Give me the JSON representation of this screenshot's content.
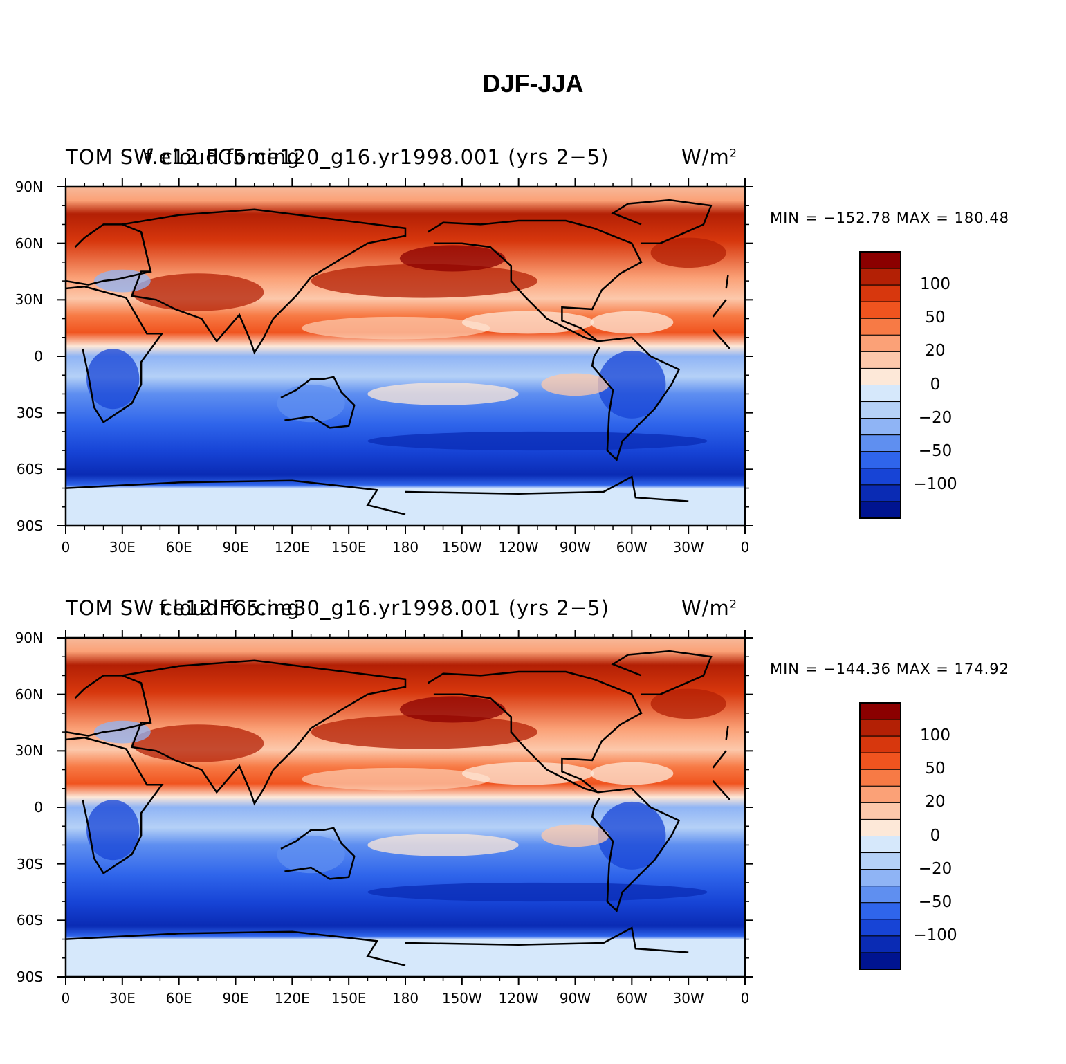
{
  "title": "DJF-JJA",
  "lat_labels": [
    "90N",
    "60N",
    "30N",
    "0",
    "30S",
    "60S",
    "90S"
  ],
  "lon_labels": [
    "0",
    "30E",
    "60E",
    "90E",
    "120E",
    "150E",
    "180",
    "150W",
    "120W",
    "90W",
    "60W",
    "30W",
    "0"
  ],
  "colorbar": {
    "labels": [
      "100",
      "50",
      "20",
      "0",
      "−20",
      "−50",
      "−100"
    ],
    "colors": [
      "#8b0000",
      "#b32005",
      "#d7370d",
      "#f0541f",
      "#f77a45",
      "#fba177",
      "#fcc8ab",
      "#fde8d8",
      "#d6e8fb",
      "#b5d1f7",
      "#8fb4f5",
      "#5f8ff0",
      "#2f65eb",
      "#1744d6",
      "#0a2bb4",
      "#001490"
    ]
  },
  "panels": [
    {
      "variable": "TOM SW cloud forcing",
      "case": "f.e12.FC5.ne120_g16.yr1998.001 (yrs 2−5)",
      "units": "W/m",
      "units_exp": "2",
      "min_max": "MIN = −152.78  MAX = 180.48"
    },
    {
      "variable": "TOM SW cloud forcing",
      "case": "f.e12.FC5.ne30_g16.yr1998.001 (yrs 2−5)",
      "units": "W/m",
      "units_exp": "2",
      "min_max": "MIN = −144.36  MAX = 174.92"
    }
  ]
}
